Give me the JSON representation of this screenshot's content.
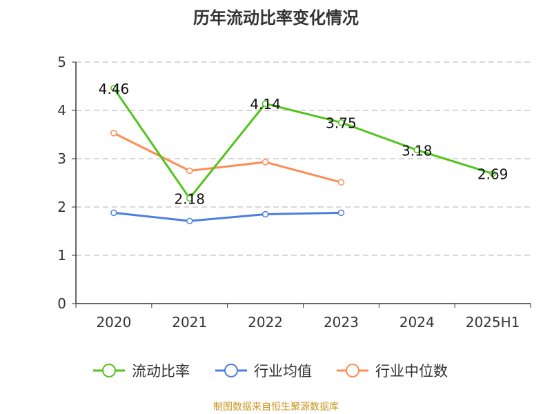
{
  "chart_data": {
    "type": "line",
    "title": "历年流动比率变化情况",
    "categories": [
      "2020",
      "2021",
      "2022",
      "2023",
      "2024",
      "2025H1"
    ],
    "ylim": [
      0,
      5
    ],
    "yticks": [
      0,
      1,
      2,
      3,
      4,
      5
    ],
    "grid": true,
    "legend_position": "bottom",
    "series": [
      {
        "name": "流动比率",
        "color": "#52c41a",
        "values": [
          4.46,
          2.18,
          4.14,
          3.75,
          3.18,
          2.69
        ],
        "labels": true
      },
      {
        "name": "行业均值",
        "color": "#4a7fe0",
        "values": [
          1.88,
          1.71,
          1.85,
          1.88,
          null,
          null
        ],
        "labels": false
      },
      {
        "name": "行业中位数",
        "color": "#ff8c55",
        "values": [
          3.53,
          2.75,
          2.93,
          2.51,
          null,
          null
        ],
        "labels": false
      }
    ]
  },
  "source": "制图数据来自恒生聚源数据库"
}
